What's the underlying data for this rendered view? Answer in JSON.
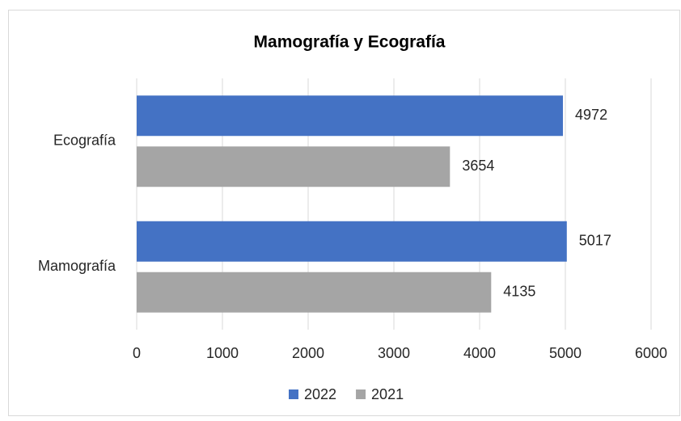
{
  "chart_data": {
    "type": "hbar",
    "title": "Mamografía y Ecografía",
    "categories": [
      "Ecografía",
      "Mamografía"
    ],
    "series": [
      {
        "name": "2022",
        "color": "#4472c4",
        "values": [
          4972,
          5017
        ]
      },
      {
        "name": "2021",
        "color": "#a5a5a5",
        "values": [
          3654,
          4135
        ]
      }
    ],
    "xlim": [
      0,
      6000
    ],
    "xticks": [
      0,
      1000,
      2000,
      3000,
      4000,
      5000,
      6000
    ],
    "grid": true,
    "legend": "bottom"
  }
}
